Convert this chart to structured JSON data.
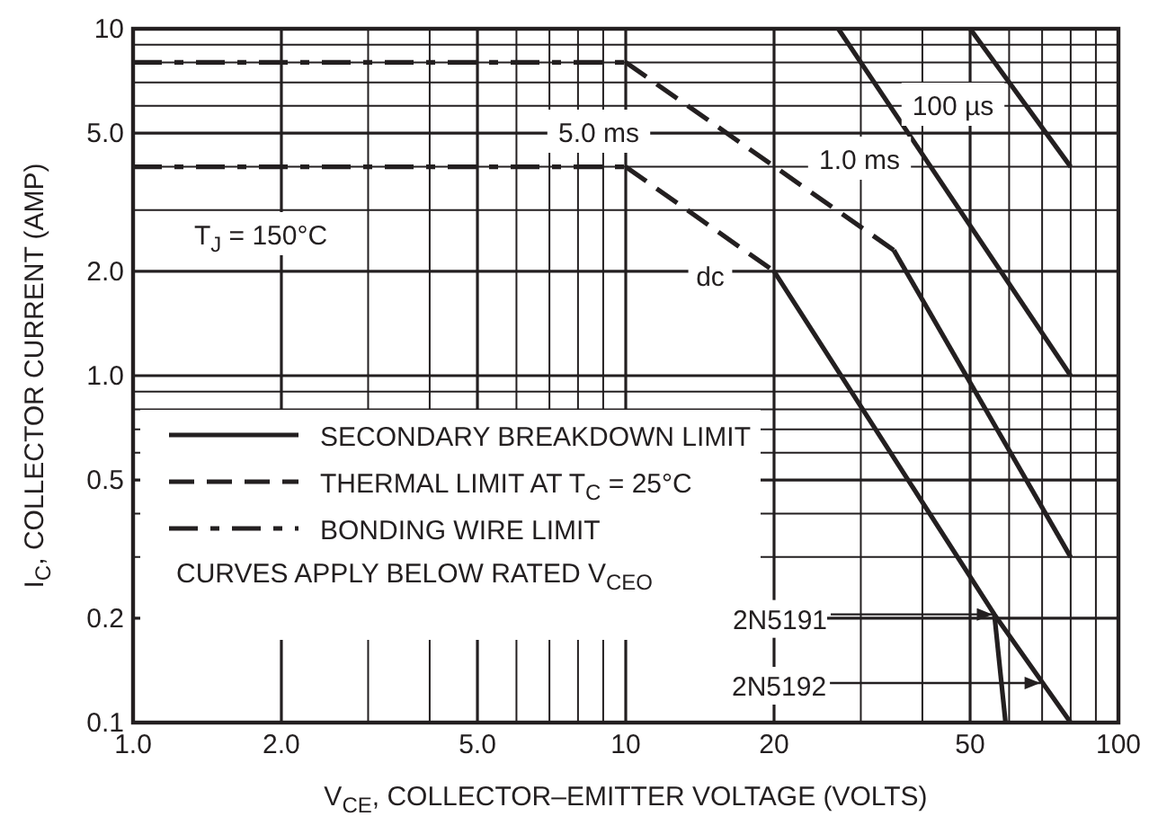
{
  "chart_data": {
    "type": "line",
    "xlabel": "V$_{CE}$, COLLECTOR–EMITTER VOLTAGE (VOLTS)",
    "ylabel": "I$_{C}$, COLLECTOR CURRENT (AMP)",
    "log": "xy",
    "grid": true,
    "legend": "bottom left",
    "xlim": [
      1,
      100
    ],
    "ylim": [
      0.1,
      10
    ],
    "xticks": [
      {
        "value": 1,
        "label": "1.0"
      },
      {
        "value": 2,
        "label": "2.0"
      },
      {
        "value": 5,
        "label": "5.0"
      },
      10,
      20,
      50,
      100
    ],
    "yticks": [
      0.1,
      0.2,
      0.5,
      {
        "value": 1,
        "label": "1.0"
      },
      {
        "value": 2,
        "label": "2.0"
      },
      {
        "value": 5,
        "label": "5.0"
      },
      10
    ],
    "series": [
      {
        "name": "SECONDARY BREAKDOWN LIMIT",
        "color": "#231f20",
        "line_style": "solid",
        "x": [
          20,
          56,
          80
        ],
        "values": [
          2,
          0.205,
          0.1
        ]
      },
      {
        "name": "THERMAL LIMIT AT T$_{C}$ = 25°C",
        "color": "#231f20",
        "line_style": "dashed",
        "x": [
          10,
          20
        ],
        "values": [
          4,
          2
        ]
      },
      {
        "name": "BONDING WIRE LIMIT",
        "color": "#231f20",
        "line_style": "dashdot",
        "x": [
          1,
          10
        ],
        "values": [
          4,
          4
        ]
      },
      {
        "color": "#231f20",
        "line_style": "dashdot",
        "x": [
          1,
          10
        ],
        "values": [
          8,
          8
        ]
      },
      {
        "color": "#231f20",
        "line_style": "dashed",
        "x": [
          10,
          35
        ],
        "values": [
          8,
          2.3
        ]
      },
      {
        "color": "#231f20",
        "line_style": "solid",
        "x": [
          35,
          80
        ],
        "values": [
          2.3,
          0.3
        ]
      },
      {
        "color": "#231f20",
        "line_style": "solid",
        "x": [
          27,
          80
        ],
        "values": [
          10,
          1.0
        ]
      },
      {
        "color": "#231f20",
        "line_style": "solid",
        "x": [
          50,
          80
        ],
        "values": [
          10,
          4
        ]
      },
      {
        "color": "#231f20",
        "line_style": "solid",
        "x": [
          56,
          59
        ],
        "values": [
          0.205,
          0.1
        ]
      }
    ],
    "annotations": [
      "T$_{J}$ = 150°C",
      "CURVES APPLY BELOW RATED V$_{CEO}$",
      "dc",
      "5.0 ms",
      "1.0 ms",
      "100 µs",
      {
        "text": "2N5191",
        "x": 56,
        "y": 0.205
      },
      {
        "text": "2N5192",
        "x": 70,
        "y": 0.13
      }
    ]
  }
}
